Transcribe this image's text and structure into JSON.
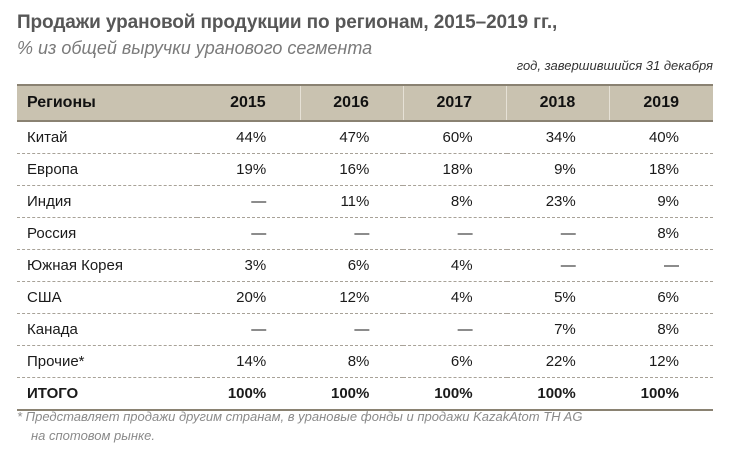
{
  "title": "Продажи урановой продукции по регионам, 2015–2019 гг.,",
  "subtitle": "% из общей выручки уранового сегмента",
  "note": "год, завершившийся 31 декабря",
  "table": {
    "headers": [
      "Регионы",
      "2015",
      "2016",
      "2017",
      "2018",
      "2019"
    ],
    "rows": [
      [
        "Китай",
        "44%",
        "47%",
        "60%",
        "34%",
        "40%"
      ],
      [
        "Европа",
        "19%",
        "16%",
        "18%",
        "9%",
        "18%"
      ],
      [
        "Индия",
        "—",
        "11%",
        "8%",
        "23%",
        "9%"
      ],
      [
        "Россия",
        "—",
        "—",
        "—",
        "—",
        "8%"
      ],
      [
        "Южная Корея",
        "3%",
        "6%",
        "4%",
        "—",
        "—"
      ],
      [
        "США",
        "20%",
        "12%",
        "4%",
        "5%",
        "6%"
      ],
      [
        "Канада",
        "—",
        "—",
        "—",
        "7%",
        "8%"
      ],
      [
        "Прочие*",
        "14%",
        "8%",
        "6%",
        "22%",
        "12%"
      ]
    ],
    "total": [
      "ИТОГО",
      "100%",
      "100%",
      "100%",
      "100%",
      "100%"
    ]
  },
  "footnote": {
    "line1": "*  Представляет продажи другим странам, в урановые фонды и продажи KazakAtom TH AG",
    "line2": "на спотовом рынке."
  }
}
